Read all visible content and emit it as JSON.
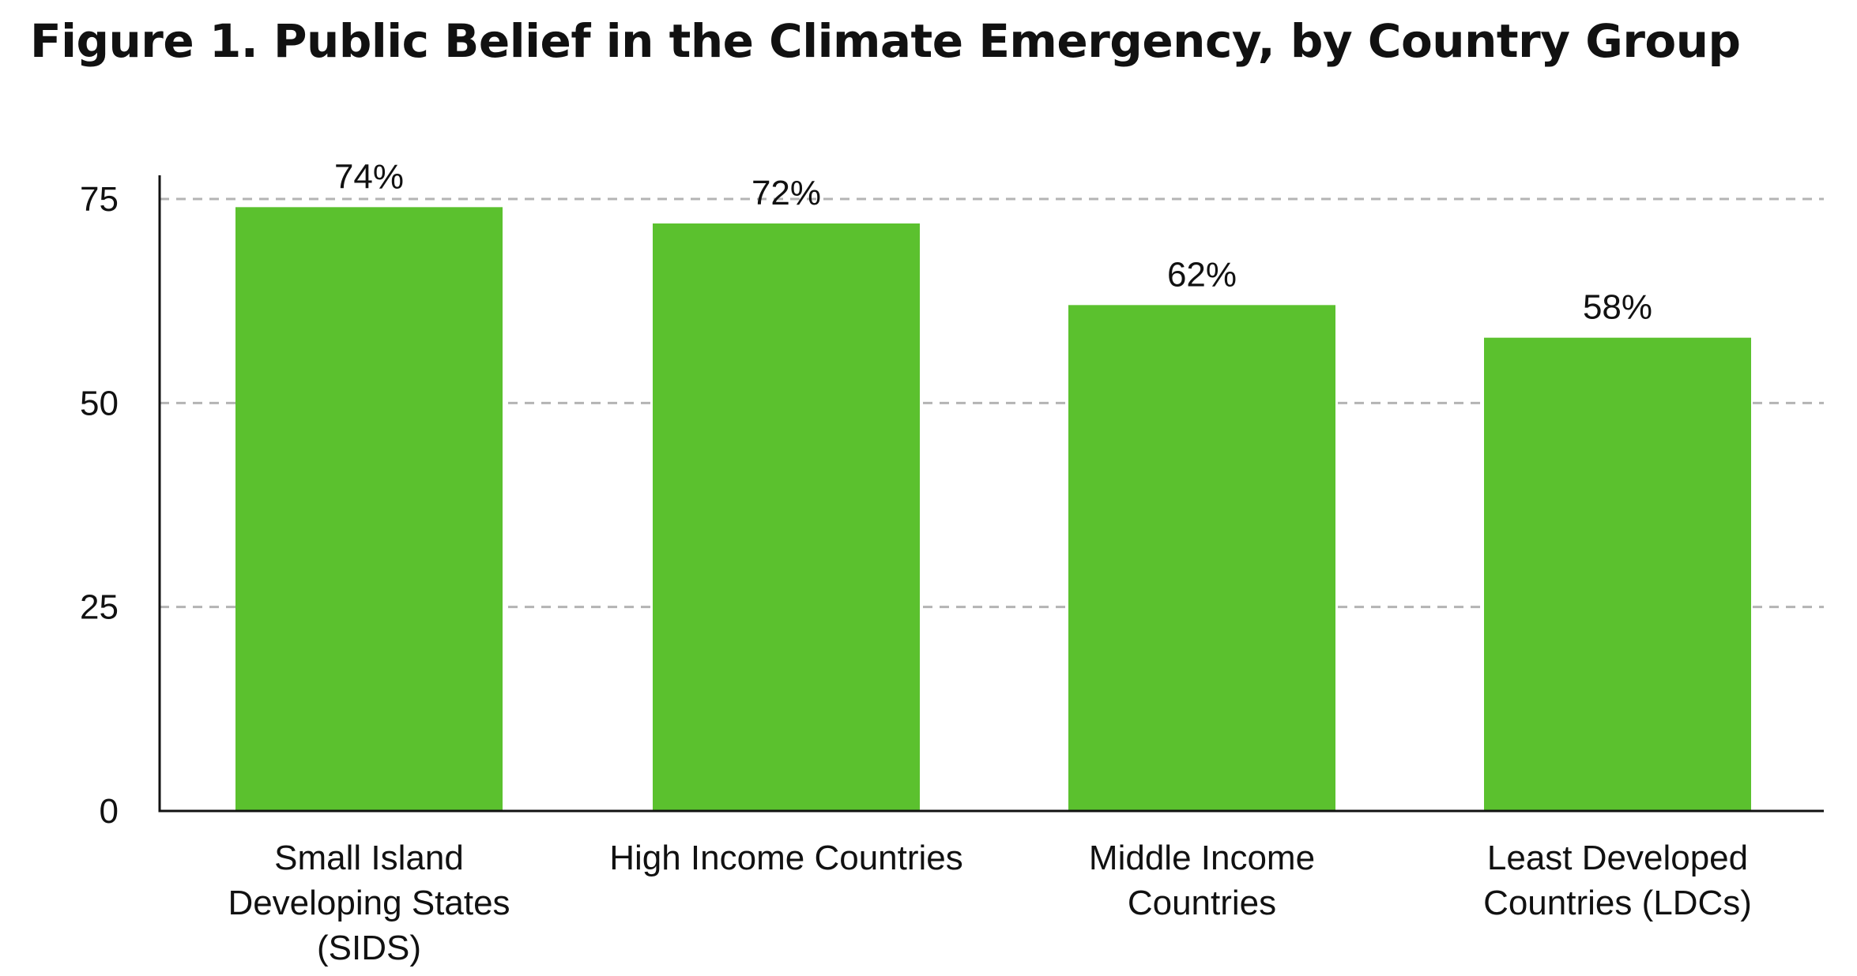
{
  "chart_data": {
    "type": "bar",
    "title": "Figure 1. Public Belief in the Climate Emergency, by Country Group",
    "categories": [
      "Small Island Developing States (SIDS)",
      "High Income Countries",
      "Middle Income Countries",
      "Least Developed Countries (LDCs)"
    ],
    "category_label_lines": [
      [
        "Small Island",
        "Developing States",
        "(SIDS)"
      ],
      [
        "High Income Countries"
      ],
      [
        "Middle Income",
        "Countries"
      ],
      [
        "Least Developed",
        "Countries (LDCs)"
      ]
    ],
    "values": [
      74,
      72,
      62,
      58
    ],
    "data_labels": [
      "74%",
      "72%",
      "62%",
      "58%"
    ],
    "yticks": [
      0,
      25,
      50,
      75
    ],
    "ylim": [
      0,
      78
    ],
    "xlabel": "",
    "ylabel": "",
    "grid": "horizontal dashed",
    "legend": "none",
    "colors": {
      "bar": "#5bc12e",
      "grid": "#b4b4b4",
      "axis": "#111111",
      "text": "#111111"
    }
  }
}
